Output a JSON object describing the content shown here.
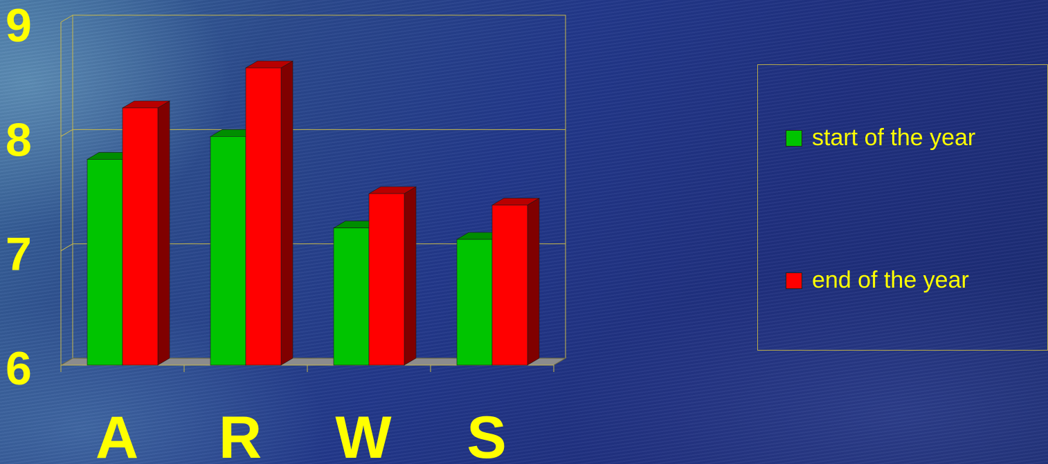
{
  "chart_data": {
    "type": "bar",
    "title": "",
    "xlabel": "",
    "ylabel": "",
    "categories": [
      "A",
      "R",
      "W",
      "S"
    ],
    "ylim": [
      6,
      9
    ],
    "yticks": [
      "6",
      "7",
      "8",
      "9"
    ],
    "grid": true,
    "legend_position": "right",
    "series": [
      {
        "name": "start of the year",
        "color": "#00c400",
        "values": [
          7.8,
          8.0,
          7.2,
          7.1
        ]
      },
      {
        "name": "end of the year",
        "color": "#ff0000",
        "values": [
          8.25,
          8.6,
          7.5,
          7.4
        ]
      }
    ]
  }
}
